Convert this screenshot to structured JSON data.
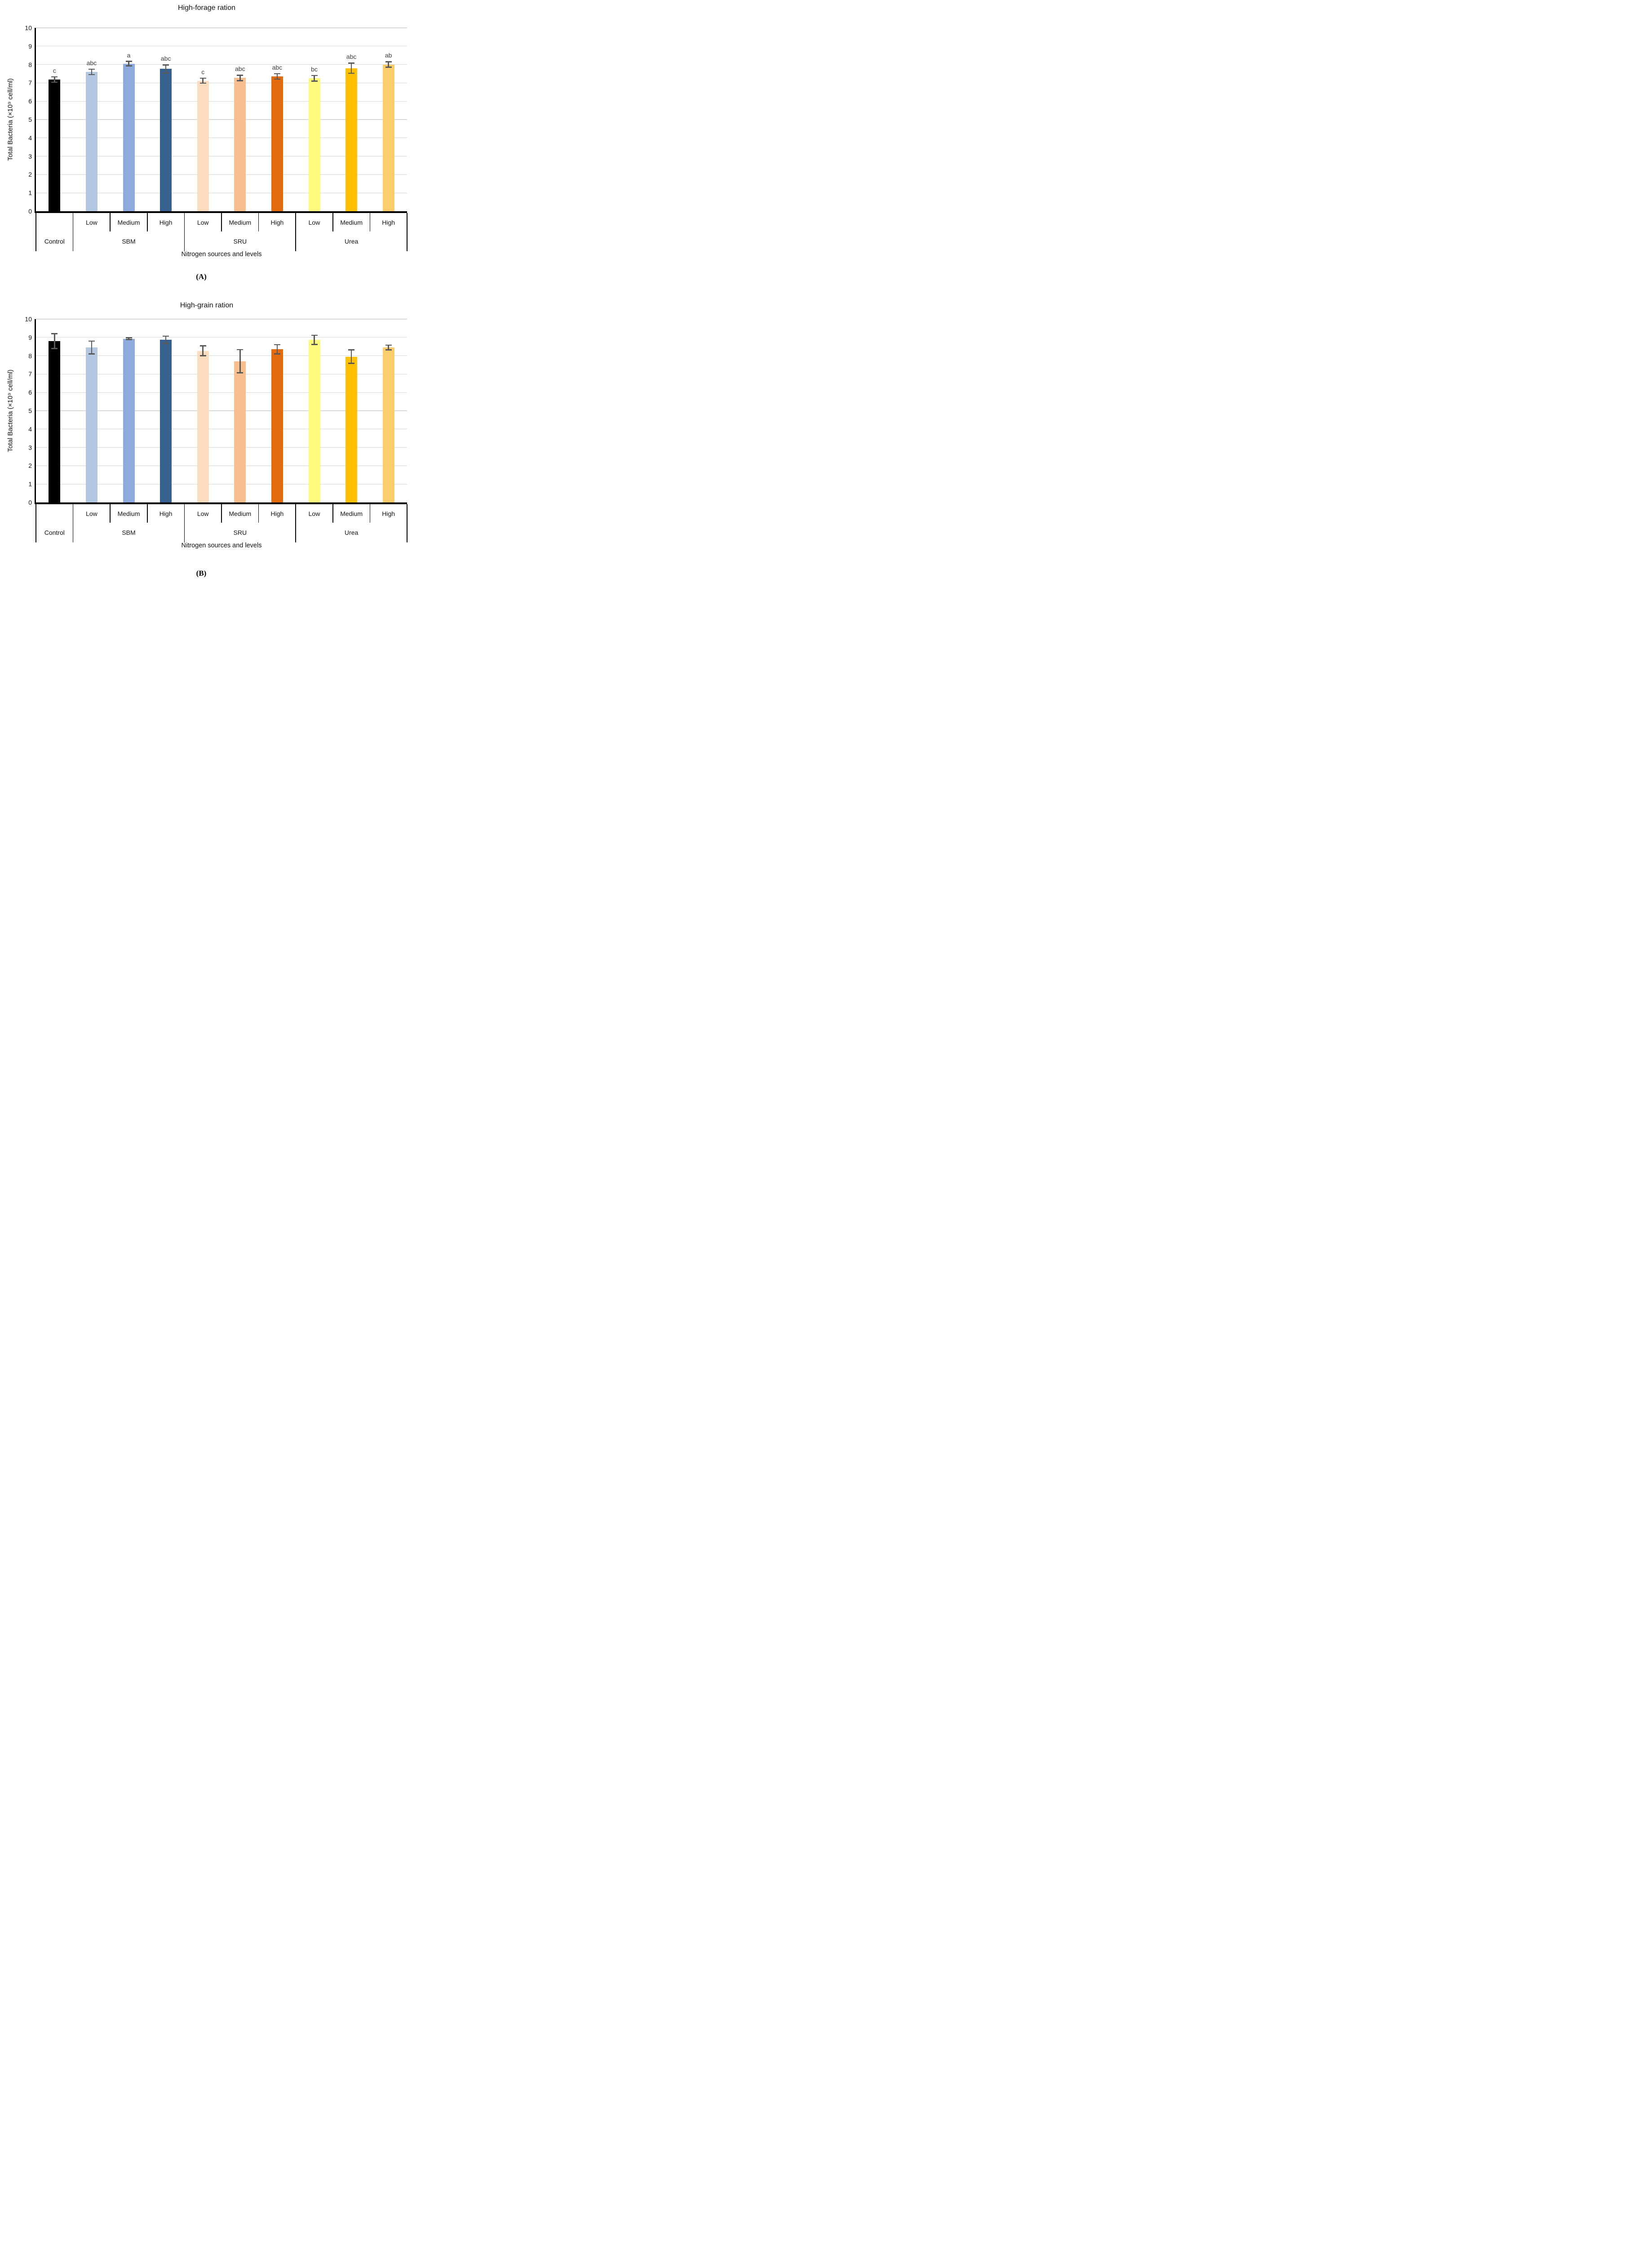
{
  "figure": {
    "panel_a_label": "(A)",
    "panel_b_label": "(B)"
  },
  "chart_data": [
    {
      "type": "bar",
      "title": "High-forage ration",
      "panel": "(A)",
      "xlabel": "Nitrogen sources and levels",
      "ylabel": "Total Bacteria (×10⁹ cell/ml)",
      "ylim": [
        0,
        10
      ],
      "yticks": [
        0,
        1,
        2,
        3,
        4,
        5,
        6,
        7,
        8,
        9,
        10
      ],
      "grid": true,
      "legend_position": "none",
      "categories": [
        "Control",
        "SBM Low",
        "SBM Medium",
        "SBM High",
        "SRU Low",
        "SRU Medium",
        "SRU High",
        "Urea Low",
        "Urea Medium",
        "Urea High"
      ],
      "level1_labels": [
        "",
        "Low",
        "Medium",
        "High",
        "Low",
        "Medium",
        "High",
        "Low",
        "Medium",
        "High"
      ],
      "groups": [
        {
          "label": "Control",
          "span": 1
        },
        {
          "label": "SBM",
          "span": 3
        },
        {
          "label": "SRU",
          "span": 3
        },
        {
          "label": "Urea",
          "span": 3
        }
      ],
      "values": [
        7.18,
        7.6,
        8.05,
        7.76,
        7.12,
        7.27,
        7.35,
        7.25,
        7.8,
        8.0
      ],
      "errors": [
        0.15,
        0.15,
        0.12,
        0.22,
        0.13,
        0.15,
        0.15,
        0.15,
        0.28,
        0.15
      ],
      "sig_letters": [
        "c",
        "abc",
        "a",
        "abc",
        "c",
        "abc",
        "abc",
        "bc",
        "abc",
        "ab"
      ],
      "colors": [
        "#000000",
        "#B4C7E0",
        "#8FAADC",
        "#36618F",
        "#FBDCBE",
        "#F8BE8E",
        "#E26B0E",
        "#FDFA7E",
        "#FFC000",
        "#FBCD6B"
      ],
      "error_bar_color": "#595959",
      "gridline_color": "#d9d9d9"
    },
    {
      "type": "bar",
      "title": "High-grain ration",
      "panel": "(B)",
      "xlabel": "Nitrogen sources and levels",
      "ylabel": "Total Bacteria (×10⁹ cell/ml)",
      "ylim": [
        0,
        10
      ],
      "yticks": [
        0,
        1,
        2,
        3,
        4,
        5,
        6,
        7,
        8,
        9,
        10
      ],
      "grid": true,
      "legend_position": "none",
      "categories": [
        "Control",
        "SBM Low",
        "SBM Medium",
        "SBM High",
        "SRU Low",
        "SRU Medium",
        "SRU High",
        "Urea Low",
        "Urea Medium",
        "Urea High"
      ],
      "level1_labels": [
        "",
        "Low",
        "Medium",
        "High",
        "Low",
        "Medium",
        "High",
        "Low",
        "Medium",
        "High"
      ],
      "groups": [
        {
          "label": "Control",
          "span": 1
        },
        {
          "label": "SBM",
          "span": 3
        },
        {
          "label": "SRU",
          "span": 3
        },
        {
          "label": "Urea",
          "span": 3
        }
      ],
      "values": [
        8.8,
        8.45,
        8.93,
        8.87,
        8.27,
        7.7,
        8.35,
        8.87,
        7.95,
        8.45
      ],
      "errors": [
        0.4,
        0.35,
        0.05,
        0.2,
        0.27,
        0.63,
        0.25,
        0.25,
        0.37,
        0.13
      ],
      "sig_letters": [
        "",
        "",
        "",
        "",
        "",
        "",
        "",
        "",
        "",
        ""
      ],
      "colors": [
        "#000000",
        "#B4C7E0",
        "#8FAADC",
        "#36618F",
        "#FBDCBE",
        "#F8BE8E",
        "#E26B0E",
        "#FDFA7E",
        "#FFC000",
        "#FBCD6B"
      ],
      "error_bar_color": "#595959",
      "gridline_color": "#d9d9d9"
    }
  ]
}
